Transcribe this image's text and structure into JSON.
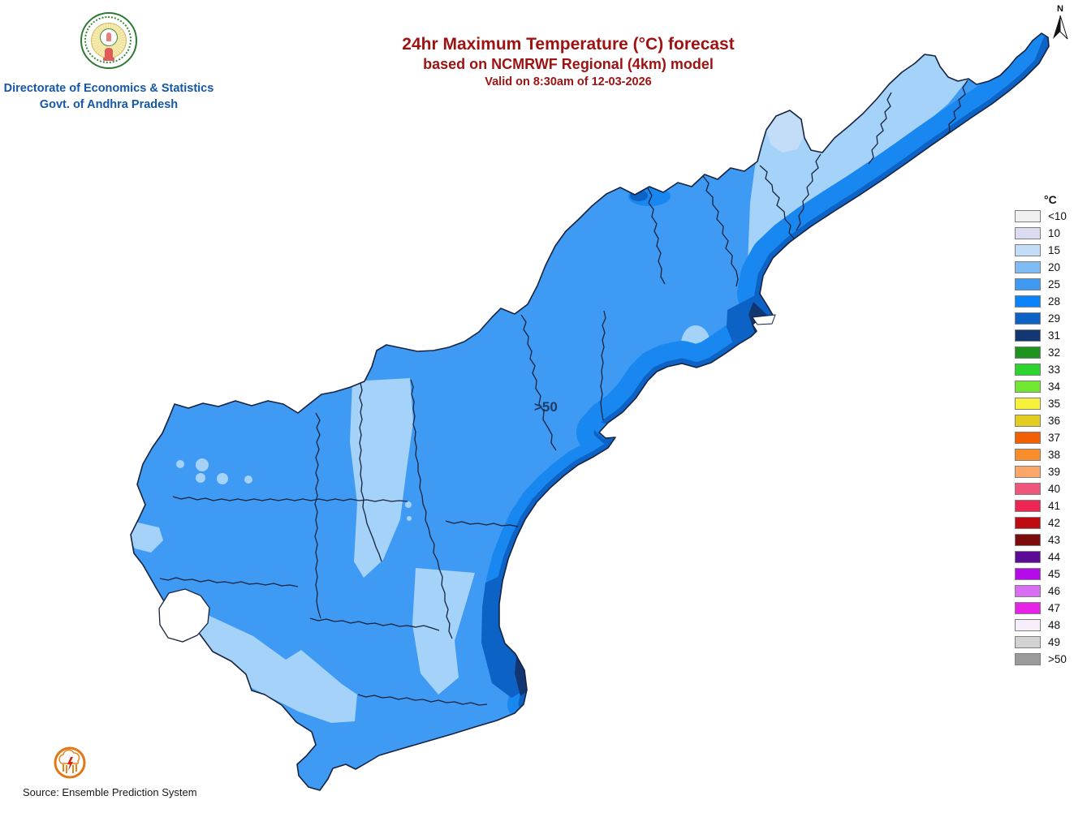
{
  "header": {
    "org_line1": "Directorate of Economics & Statistics",
    "org_line2": "Govt. of Andhra Pradesh",
    "title_line1": "24hr Maximum Temperature (°C) forecast",
    "title_line2": "based on NCMRWF Regional (4km) model",
    "title_line3": "Valid on 8:30am of 12-03-2026"
  },
  "compass": {
    "label": "N"
  },
  "legend": {
    "unit": "°C",
    "items": [
      {
        "label": "<10",
        "color": "#f0f0f0"
      },
      {
        "label": "10",
        "color": "#dcdcf0"
      },
      {
        "label": "15",
        "color": "#c3dcf7"
      },
      {
        "label": "20",
        "color": "#7fbcf5"
      },
      {
        "label": "25",
        "color": "#3e9af3"
      },
      {
        "label": "28",
        "color": "#0b83fb"
      },
      {
        "label": "29",
        "color": "#0d62c6"
      },
      {
        "label": "31",
        "color": "#123672"
      },
      {
        "label": "32",
        "color": "#1e941e"
      },
      {
        "label": "33",
        "color": "#2ed42e"
      },
      {
        "label": "34",
        "color": "#70e831"
      },
      {
        "label": "35",
        "color": "#f7f13c"
      },
      {
        "label": "36",
        "color": "#e3cd20"
      },
      {
        "label": "37",
        "color": "#f26005"
      },
      {
        "label": "38",
        "color": "#f98d29"
      },
      {
        "label": "39",
        "color": "#fba76a"
      },
      {
        "label": "40",
        "color": "#f0557c"
      },
      {
        "label": "41",
        "color": "#ee2553"
      },
      {
        "label": "42",
        "color": "#be0b10"
      },
      {
        "label": "43",
        "color": "#7d0c0c"
      },
      {
        "label": "44",
        "color": "#5c0b96"
      },
      {
        "label": "45",
        "color": "#b50aea"
      },
      {
        "label": "46",
        "color": "#d86ff2"
      },
      {
        "label": "47",
        "color": "#e822e8"
      },
      {
        "label": "48",
        "color": "#f7edfb"
      },
      {
        "label": "49",
        "color": "#d2d2d2"
      },
      {
        "label": ">50",
        "color": "#9b9b9b"
      }
    ]
  },
  "map": {
    "overlay_label": ">50",
    "colors": {
      "base": "#3e9af3",
      "light": "#a4d2f9",
      "lighter": "#c3dcf7",
      "band28": "#1987f0",
      "band29": "#0d62c6",
      "navy31": "#123672",
      "boundary": "#17233f",
      "sea": "#ffffff"
    }
  },
  "footer": {
    "source": "Source: Ensemble Prediction System"
  },
  "chart_data": {
    "type": "choropleth_map",
    "region": "Andhra Pradesh",
    "variable": "24hr Maximum Temperature (°C)",
    "scale_labels": [
      "<10",
      "10",
      "15",
      "20",
      "25",
      "28",
      "29",
      "31",
      "32",
      "33",
      "34",
      "35",
      "36",
      "37",
      "38",
      "39",
      "40",
      "41",
      "42",
      "43",
      "44",
      "45",
      "46",
      "47",
      "48",
      "49",
      ">50"
    ],
    "dominant_classes_on_map": [
      "20",
      "25",
      "28",
      "29",
      "31"
    ],
    "legend_position": "right"
  }
}
